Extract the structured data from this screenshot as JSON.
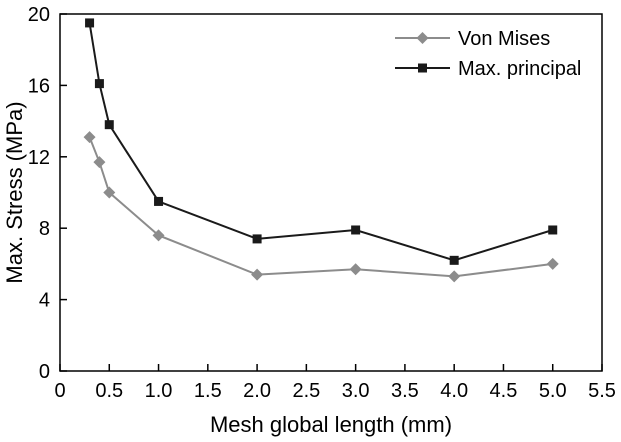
{
  "chart_data": {
    "type": "line",
    "title": "",
    "xlabel": "Mesh global length (mm)",
    "ylabel": "Max. Stress (MPa)",
    "xlim": [
      0,
      5.5
    ],
    "ylim": [
      0,
      20
    ],
    "xticks": [
      0,
      0.5,
      1.0,
      1.5,
      2.0,
      2.5,
      3.0,
      3.5,
      4.0,
      4.5,
      5.0,
      5.5
    ],
    "xtick_labels": [
      "0",
      "0.5",
      "1.0",
      "1.5",
      "2.0",
      "2.5",
      "3.0",
      "3.5",
      "4.0",
      "4.5",
      "5.0",
      "5.5"
    ],
    "yticks": [
      0,
      4,
      8,
      12,
      16,
      20
    ],
    "ytick_labels": [
      "0",
      "4",
      "8",
      "12",
      "16",
      "20"
    ],
    "grid": false,
    "legend_position": "top-right",
    "x": [
      0.3,
      0.4,
      0.5,
      1.0,
      2.0,
      3.0,
      4.0,
      5.0
    ],
    "series": [
      {
        "name": "Von Mises",
        "marker": "diamond",
        "color": "#8c8c8c",
        "values": [
          13.1,
          11.7,
          10.0,
          7.6,
          5.4,
          5.7,
          5.3,
          6.0
        ]
      },
      {
        "name": "Max. principal",
        "marker": "square",
        "color": "#1a1a1a",
        "values": [
          19.5,
          16.1,
          13.8,
          9.5,
          7.4,
          7.9,
          6.2,
          7.9
        ]
      }
    ]
  }
}
